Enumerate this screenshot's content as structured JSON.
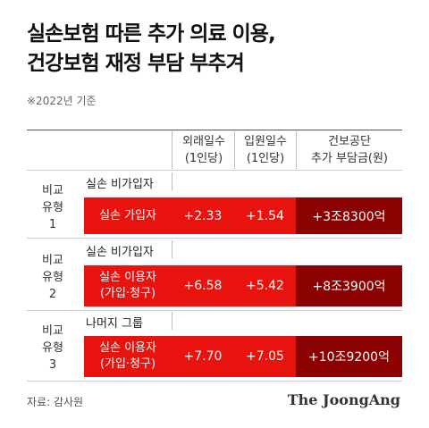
{
  "title_line1": "실손보험 따른 추가 의료 이용,",
  "title_line2": "건강보험 재정 부담 부추겨",
  "subtitle": "※2022년 기준",
  "headers": {
    "outpatient_line1": "외래일수",
    "outpatient_line2": "(1인당)",
    "inpatient_line1": "입원일수",
    "inpatient_line2": "(1인당)",
    "burden_line1": "건보공단",
    "burden_line2": "추가 부담금(원)"
  },
  "groups": [
    {
      "type_line1": "비교",
      "type_line2": "유형",
      "type_line3": "1",
      "comparison": "실손 비가입자",
      "subject_line1": "실손 가입자",
      "subject_line2": "",
      "outpatient": "+2.33",
      "inpatient": "+1.54",
      "burden": "+3조8300억"
    },
    {
      "type_line1": "비교",
      "type_line2": "유형",
      "type_line3": "2",
      "comparison": "실손 비가입자",
      "subject_line1": "실손 이용자",
      "subject_line2": "(가입·청구)",
      "outpatient": "+6.58",
      "inpatient": "+5.42",
      "burden": "+8조3900억"
    },
    {
      "type_line1": "비교",
      "type_line2": "유형",
      "type_line3": "3",
      "comparison": "나머지 그룹",
      "subject_line1": "실손 이용자",
      "subject_line2": "(가입·청구)",
      "outpatient": "+7.70",
      "inpatient": "+7.05",
      "burden": "+10조9200억"
    }
  ],
  "source": "자료: 감사원",
  "brand": "The JoongAng",
  "colors": {
    "bar_red": "#e8130e",
    "bar_dark": "#8b0000"
  }
}
